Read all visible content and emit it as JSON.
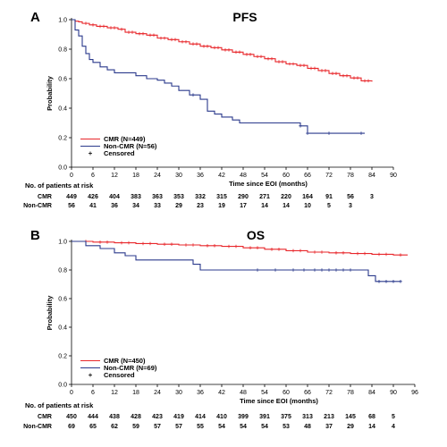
{
  "chart_data": [
    {
      "type": "line",
      "panel": "A",
      "title": "PFS",
      "xlabel": "Time since EOI (months)",
      "ylabel": "Probability",
      "xlim": [
        0,
        90
      ],
      "ylim": [
        0,
        1.0
      ],
      "xticks": [
        0,
        6,
        12,
        18,
        24,
        30,
        36,
        42,
        48,
        54,
        60,
        66,
        72,
        78,
        84,
        90
      ],
      "yticks": [
        0,
        0.2,
        0.4,
        0.6,
        0.8,
        1.0
      ],
      "ytick_labels": [
        "0.0",
        "0.2",
        "0.4",
        "0.6",
        "0.8",
        "1.0"
      ],
      "grid": false,
      "legend_position": "bottom-left",
      "legend_censored_label": "Censored",
      "series": [
        {
          "name": "CMR (N=449)",
          "color": "#e8272b",
          "points": [
            [
              0,
              1.0
            ],
            [
              1,
              0.99
            ],
            [
              2,
              0.985
            ],
            [
              3,
              0.975
            ],
            [
              5,
              0.965
            ],
            [
              7,
              0.955
            ],
            [
              10,
              0.945
            ],
            [
              13,
              0.935
            ],
            [
              15,
              0.915
            ],
            [
              18,
              0.905
            ],
            [
              21,
              0.895
            ],
            [
              24,
              0.875
            ],
            [
              27,
              0.865
            ],
            [
              30,
              0.85
            ],
            [
              33,
              0.835
            ],
            [
              36,
              0.82
            ],
            [
              39,
              0.81
            ],
            [
              42,
              0.795
            ],
            [
              45,
              0.78
            ],
            [
              48,
              0.765
            ],
            [
              51,
              0.75
            ],
            [
              54,
              0.735
            ],
            [
              57,
              0.715
            ],
            [
              60,
              0.7
            ],
            [
              63,
              0.69
            ],
            [
              66,
              0.67
            ],
            [
              69,
              0.655
            ],
            [
              72,
              0.635
            ],
            [
              75,
              0.62
            ],
            [
              78,
              0.605
            ],
            [
              81,
              0.585
            ],
            [
              84,
              0.58
            ]
          ],
          "censored": [
            4,
            6,
            8,
            9,
            11,
            12,
            14,
            16,
            17,
            19,
            20,
            22,
            23,
            25,
            26,
            28,
            29,
            31,
            32,
            34,
            35,
            37,
            38,
            40,
            41,
            43,
            44,
            46,
            47,
            49,
            50,
            52,
            53,
            55,
            56,
            58,
            59,
            61,
            62,
            64,
            65,
            67,
            68,
            70,
            71,
            73,
            74,
            76,
            77,
            79,
            80,
            82,
            83
          ]
        },
        {
          "name": "Non-CMR (N=56)",
          "color": "#2b3a8c",
          "points": [
            [
              0,
              1.0
            ],
            [
              1,
              0.93
            ],
            [
              2,
              0.89
            ],
            [
              3,
              0.82
            ],
            [
              4,
              0.77
            ],
            [
              5,
              0.73
            ],
            [
              6,
              0.71
            ],
            [
              8,
              0.68
            ],
            [
              10,
              0.66
            ],
            [
              12,
              0.64
            ],
            [
              18,
              0.62
            ],
            [
              21,
              0.6
            ],
            [
              24,
              0.59
            ],
            [
              26,
              0.57
            ],
            [
              28,
              0.55
            ],
            [
              30,
              0.52
            ],
            [
              33,
              0.49
            ],
            [
              36,
              0.46
            ],
            [
              38,
              0.38
            ],
            [
              40,
              0.36
            ],
            [
              42,
              0.34
            ],
            [
              45,
              0.32
            ],
            [
              47,
              0.3
            ],
            [
              64,
              0.28
            ],
            [
              66,
              0.23
            ],
            [
              82,
              0.23
            ]
          ],
          "censored": [
            34,
            64,
            66,
            72,
            81
          ]
        }
      ],
      "risk_table": {
        "header": "No. of patients at risk",
        "rows": [
          {
            "label": "CMR",
            "values": [
              "449",
              "426",
              "404",
              "383",
              "363",
              "353",
              "332",
              "315",
              "290",
              "271",
              "220",
              "164",
              "91",
              "56",
              "3"
            ]
          },
          {
            "label": "Non-CMR",
            "values": [
              "56",
              "41",
              "36",
              "34",
              "33",
              "29",
              "23",
              "19",
              "17",
              "14",
              "14",
              "10",
              "5",
              "3",
              ""
            ]
          }
        ]
      }
    },
    {
      "type": "line",
      "panel": "B",
      "title": "OS",
      "xlabel": "Time since EOI (months)",
      "ylabel": "Probability",
      "xlim": [
        0,
        96
      ],
      "ylim": [
        0,
        1.0
      ],
      "xticks": [
        0,
        6,
        12,
        18,
        24,
        30,
        36,
        42,
        48,
        54,
        60,
        66,
        72,
        78,
        84,
        90,
        96
      ],
      "yticks": [
        0,
        0.2,
        0.4,
        0.6,
        0.8,
        1.0
      ],
      "ytick_labels": [
        "0.0",
        "0.2",
        "0.4",
        "0.6",
        "0.8",
        "1.0"
      ],
      "grid": false,
      "legend_position": "bottom-left",
      "legend_censored_label": "Censored",
      "series": [
        {
          "name": "CMR (N=450)",
          "color": "#e8272b",
          "points": [
            [
              0,
              1.0
            ],
            [
              6,
              0.995
            ],
            [
              12,
              0.99
            ],
            [
              18,
              0.985
            ],
            [
              24,
              0.98
            ],
            [
              30,
              0.975
            ],
            [
              36,
              0.97
            ],
            [
              42,
              0.965
            ],
            [
              48,
              0.955
            ],
            [
              54,
              0.945
            ],
            [
              60,
              0.935
            ],
            [
              66,
              0.925
            ],
            [
              72,
              0.92
            ],
            [
              78,
              0.915
            ],
            [
              84,
              0.91
            ],
            [
              90,
              0.905
            ],
            [
              94,
              0.905
            ]
          ],
          "censored": [
            4,
            8,
            10,
            14,
            16,
            20,
            22,
            26,
            28,
            32,
            34,
            38,
            40,
            44,
            46,
            50,
            52,
            56,
            58,
            62,
            64,
            68,
            70,
            74,
            76,
            80,
            82,
            86,
            88,
            92
          ]
        },
        {
          "name": "Non-CMR (N=69)",
          "color": "#2b3a8c",
          "points": [
            [
              0,
              1.0
            ],
            [
              4,
              0.97
            ],
            [
              8,
              0.95
            ],
            [
              12,
              0.92
            ],
            [
              15,
              0.9
            ],
            [
              18,
              0.87
            ],
            [
              30,
              0.87
            ],
            [
              34,
              0.84
            ],
            [
              36,
              0.8
            ],
            [
              80,
              0.8
            ],
            [
              83,
              0.76
            ],
            [
              85,
              0.72
            ],
            [
              92,
              0.72
            ]
          ],
          "censored": [
            52,
            57,
            62,
            65,
            68,
            70,
            72,
            74,
            76,
            78,
            86,
            88,
            90,
            92
          ]
        }
      ],
      "risk_table": {
        "header": "No. of patients at risk",
        "rows": [
          {
            "label": "CMR",
            "values": [
              "450",
              "444",
              "438",
              "428",
              "423",
              "419",
              "414",
              "410",
              "399",
              "391",
              "375",
              "313",
              "213",
              "145",
              "68",
              "5"
            ]
          },
          {
            "label": "Non-CMR",
            "values": [
              "69",
              "65",
              "62",
              "59",
              "57",
              "57",
              "55",
              "54",
              "54",
              "54",
              "53",
              "48",
              "37",
              "29",
              "14",
              "4"
            ]
          }
        ]
      }
    }
  ]
}
